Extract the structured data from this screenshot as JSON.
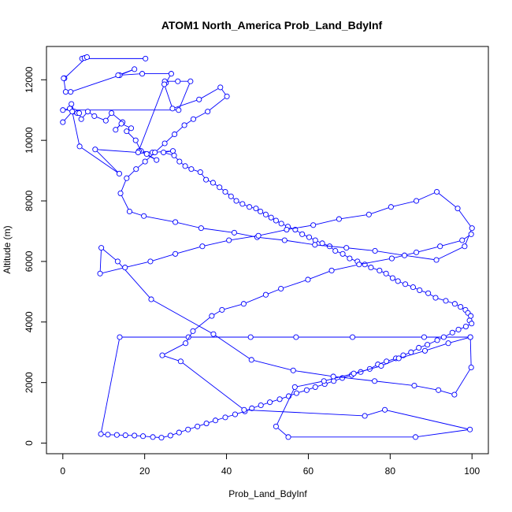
{
  "chart_data": {
    "type": "line",
    "title": "ATOM1 North_America Prob_Land_BdyInf",
    "xlabel": "Prob_Land_BdyInf",
    "ylabel": "Altitude (m)",
    "xlim": [
      -4,
      104
    ],
    "ylim": [
      -350,
      13100
    ],
    "x_ticks": [
      0,
      20,
      40,
      60,
      80,
      100
    ],
    "y_ticks": [
      0,
      2000,
      4000,
      6000,
      8000,
      10000,
      12000
    ],
    "grid": false,
    "marker": "open-circle",
    "series": [
      {
        "color": "#0000ff",
        "x": [
          20.2,
          4.7,
          5.3,
          5.9,
          0.4,
          0.2,
          0.7,
          1.9,
          13.9,
          17.5,
          13.5,
          19.4,
          26.5,
          25.2,
          24.9,
          28.1,
          31.2,
          28.3,
          0.0,
          1.7,
          2.1,
          2.8,
          3.5,
          4.0,
          4.5,
          6.1,
          7.7,
          10.5,
          11.9,
          14.6,
          12.9,
          14.3,
          16.7,
          15.6,
          17.8,
          19.1,
          20.5,
          22.9,
          18.6,
          21.9,
          26.9,
          24.6,
          27.2,
          28.5,
          29.9,
          31.4,
          33.6,
          35.0,
          36.7,
          38.3,
          39.7,
          41.1,
          42.4,
          43.9,
          45.6,
          47.2,
          48.3,
          49.6,
          50.9,
          52.1,
          53.4,
          55.0,
          56.8,
          58.5,
          60.2,
          61.7,
          63.4,
          65.2,
          66.6,
          68.4,
          70.1,
          72.0,
          73.8,
          75.3,
          77.4,
          79.0,
          80.6,
          81.9,
          83.7,
          85.6,
          87.2,
          89.3,
          91.1,
          93.6,
          95.8,
          97.2,
          98.4,
          99.0,
          99.7,
          99.4,
          99.9,
          98.5,
          96.7,
          95.2,
          93.1,
          91.5,
          89.1,
          87.0,
          85.1,
          83.2,
          81.4,
          79.1,
          77.0,
          75.0,
          72.8,
          70.6,
          68.3,
          66.2,
          64.0,
          61.7,
          59.6,
          57.1,
          55.2,
          53.0,
          50.6,
          48.4,
          46.2,
          44.5,
          42.1,
          39.7,
          37.3,
          35.1,
          32.9,
          30.6,
          28.4,
          26.3,
          24.1,
          22.0,
          19.6,
          17.5,
          15.3,
          13.2,
          11.0,
          9.3,
          13.9,
          30.7,
          45.9,
          57.0,
          70.8,
          88.3,
          99.6
        ],
        "y": [
          12700,
          12700,
          12720,
          12750,
          12050,
          12050,
          11600,
          11600,
          12150,
          12350,
          12150,
          12200,
          12200,
          11900,
          11950,
          11950,
          11950,
          11000,
          11000,
          11050,
          11200,
          10950,
          10900,
          10900,
          10700,
          10950,
          10800,
          10650,
          10900,
          10600,
          10350,
          10550,
          10400,
          10300,
          10000,
          9650,
          9550,
          9350,
          9650,
          9600,
          9650,
          9600,
          9500,
          9300,
          9150,
          9050,
          8950,
          8700,
          8600,
          8450,
          8300,
          8150,
          8000,
          7900,
          7800,
          7750,
          7650,
          7550,
          7450,
          7350,
          7250,
          7150,
          7050,
          6900,
          6800,
          6700,
          6600,
          6500,
          6350,
          6250,
          6100,
          6000,
          5900,
          5800,
          5700,
          5600,
          5450,
          5350,
          5250,
          5150,
          5050,
          4950,
          4800,
          4700,
          4600,
          4500,
          4400,
          4300,
          4200,
          4050,
          3950,
          3850,
          3750,
          3650,
          3500,
          3400,
          3250,
          3150,
          3000,
          2900,
          2800,
          2700,
          2600,
          2450,
          2350,
          2250,
          2150,
          2050,
          1950,
          1850,
          1750,
          1650,
          1550,
          1450,
          1350,
          1250,
          1150,
          1050,
          950,
          850,
          750,
          650,
          550,
          450,
          350,
          250,
          180,
          200,
          230,
          250,
          260,
          270,
          280,
          300,
          3500,
          3500,
          3500,
          3500,
          3500,
          3500,
          3500
        ]
      },
      {
        "color": "#0000ff",
        "x": [
          0.0,
          2.3,
          4.1,
          13.8,
          7.9,
          18.4,
          24.8,
          26.8,
          33.3,
          38.5,
          40.1,
          35.4,
          31.9,
          29.7,
          27.3,
          24.9,
          22.5,
          20.1,
          17.9,
          15.6,
          14.1,
          16.3,
          19.8,
          27.5,
          33.8,
          41.9,
          47.5,
          54.2,
          61.6,
          69.3,
          76.3,
          83.5,
          91.3,
          98.2,
          100.0,
          96.5,
          91.4,
          86.4,
          80.2,
          74.8,
          67.5,
          61.2,
          54.7,
          47.8,
          40.6,
          34.1,
          27.5,
          21.4,
          15.2,
          9.1,
          9.4,
          13.4,
          21.6,
          36.8,
          46.1,
          56.3,
          66.1,
          76.2,
          85.9,
          91.8,
          95.7,
          99.8,
          99.6,
          94.2,
          88.5,
          82.1,
          77.8,
          71.1,
          63.8,
          56.7,
          52.1,
          55.1,
          86.2,
          99.5,
          78.7,
          73.8,
          44.3,
          28.8,
          24.3,
          30.0,
          31.8,
          36.4,
          38.9,
          44.2,
          49.6,
          53.3,
          59.9,
          65.7,
          72.4,
          80.4,
          86.4,
          92.2,
          97.6,
          99.8
        ],
        "y": [
          10600,
          10950,
          9800,
          8900,
          9700,
          9600,
          11850,
          11050,
          11350,
          11750,
          11450,
          10950,
          10700,
          10500,
          10200,
          9900,
          9600,
          9300,
          9050,
          8750,
          8250,
          7650,
          7500,
          7300,
          7100,
          6950,
          6800,
          6700,
          6550,
          6450,
          6350,
          6200,
          6050,
          6500,
          7100,
          7750,
          8300,
          8000,
          7800,
          7550,
          7400,
          7200,
          7050,
          6850,
          6700,
          6500,
          6250,
          6000,
          5800,
          5600,
          6450,
          6000,
          4750,
          3600,
          2750,
          2400,
          2200,
          2050,
          1900,
          1750,
          1600,
          2500,
          3500,
          3300,
          3050,
          2800,
          2550,
          2300,
          2050,
          1850,
          550,
          200,
          200,
          450,
          1100,
          900,
          1100,
          2700,
          2900,
          3300,
          3700,
          4200,
          4400,
          4600,
          4900,
          5100,
          5400,
          5700,
          5900,
          6100,
          6300,
          6500,
          6700,
          6900
        ]
      }
    ]
  }
}
